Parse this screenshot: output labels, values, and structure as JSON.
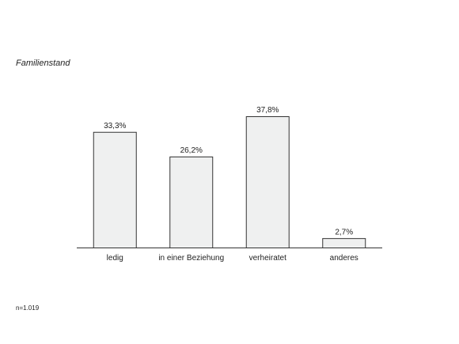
{
  "chart_data": {
    "type": "bar",
    "title": "Familienstand",
    "categories": [
      "ledig",
      "in einer Beziehung",
      "verheiratet",
      "anderes"
    ],
    "values": [
      33.3,
      26.2,
      37.8,
      2.7
    ],
    "value_labels": [
      "33,3%",
      "26,2%",
      "37,8%",
      "2,7%"
    ],
    "color": "#eff0f0",
    "note": "n=1.019"
  }
}
